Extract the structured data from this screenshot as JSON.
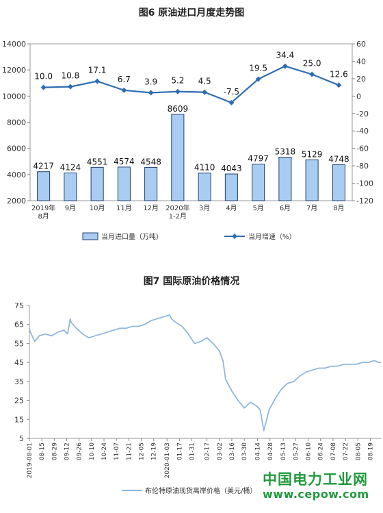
{
  "chart_data": [
    {
      "type": "bar",
      "title": "图6  原油进口月度走势图",
      "categories": [
        [
          "2019年",
          "8月"
        ],
        [
          "9月"
        ],
        [
          "10月"
        ],
        [
          "11月"
        ],
        [
          "12月"
        ],
        [
          "2020年",
          "1-2月"
        ],
        [
          "3月"
        ],
        [
          "4月"
        ],
        [
          "5月"
        ],
        [
          "6月"
        ],
        [
          "7月"
        ],
        [
          "8月"
        ]
      ],
      "series": [
        {
          "name": "当月进口量（万吨）",
          "type": "bar",
          "axis": "left",
          "values": [
            4217,
            4124,
            4551,
            4574,
            4548,
            8609,
            4110,
            4043,
            4797,
            5318,
            5129,
            4748
          ],
          "labels": [
            "4217",
            "4124",
            "4551",
            "4574",
            "4548",
            "8609",
            "4110",
            "4043",
            "4797",
            "5318",
            "5129",
            "4748"
          ]
        },
        {
          "name": "当月增速（%）",
          "type": "line",
          "axis": "right",
          "values": [
            10.0,
            10.8,
            17.1,
            6.7,
            3.9,
            5.2,
            4.5,
            -7.5,
            19.5,
            34.4,
            25.0,
            12.6
          ],
          "labels": [
            "10.0",
            "10.8",
            "17.1",
            "6.7",
            "3.9",
            "5.2",
            "4.5",
            "-7.5",
            "19.5",
            "34.4",
            "25.0",
            "12.6"
          ]
        }
      ],
      "ylim_left": [
        2000,
        14000
      ],
      "yticks_left": [
        "2000",
        "4000",
        "6000",
        "8000",
        "10000",
        "12000",
        "14000"
      ],
      "ylim_right": [
        -120,
        60
      ],
      "yticks_right": [
        "-120",
        "-100",
        "-80",
        "-60",
        "-40",
        "-20",
        "0",
        "20",
        "40",
        "60"
      ],
      "legend_position": "bottom",
      "grid": false,
      "colors": {
        "bar_fill": "#a9cdf2",
        "bar_stroke": "#1f3f6e",
        "line": "#2e6db4"
      }
    },
    {
      "type": "line",
      "title": "图7  国际原油价格情况",
      "ylim": [
        5,
        75
      ],
      "yticks": [
        "5",
        "15",
        "25",
        "35",
        "45",
        "55",
        "65",
        "75"
      ],
      "x_start": "2019-08-01",
      "x_end": "2020-08-31",
      "xticks": [
        "2019-08-01",
        "08-15",
        "08-29",
        "09-12",
        "09-26",
        "10-10",
        "10-24",
        "11-07",
        "11-21",
        "12-05",
        "12-19",
        "2020-01-03",
        "01-17",
        "01-31",
        "02-17",
        "03-02",
        "03-16",
        "03-30",
        "04-14",
        "04-28",
        "05-13",
        "05-27",
        "06-10",
        "06-24",
        "07-08",
        "07-22",
        "08-05",
        "08-19"
      ],
      "series": [
        {
          "name": "布伦特原油现货离岸价格（美元/桶）",
          "x": [
            "2019-08-01",
            "2019-08-02",
            "2019-08-07",
            "2019-08-12",
            "2019-08-19",
            "2019-08-26",
            "2019-09-02",
            "2019-09-09",
            "2019-09-13",
            "2019-09-16",
            "2019-09-17",
            "2019-09-23",
            "2019-09-30",
            "2019-10-07",
            "2019-10-14",
            "2019-10-21",
            "2019-10-28",
            "2019-11-04",
            "2019-11-11",
            "2019-11-18",
            "2019-11-25",
            "2019-12-02",
            "2019-12-09",
            "2019-12-16",
            "2019-12-23",
            "2019-12-30",
            "2020-01-06",
            "2020-01-08",
            "2020-01-13",
            "2020-01-20",
            "2020-01-27",
            "2020-02-03",
            "2020-02-10",
            "2020-02-17",
            "2020-02-24",
            "2020-03-02",
            "2020-03-06",
            "2020-03-09",
            "2020-03-16",
            "2020-03-23",
            "2020-03-30",
            "2020-04-06",
            "2020-04-13",
            "2020-04-17",
            "2020-04-21",
            "2020-04-27",
            "2020-05-04",
            "2020-05-11",
            "2020-05-18",
            "2020-05-25",
            "2020-06-01",
            "2020-06-08",
            "2020-06-15",
            "2020-06-22",
            "2020-06-29",
            "2020-07-06",
            "2020-07-13",
            "2020-07-20",
            "2020-07-27",
            "2020-08-03",
            "2020-08-10",
            "2020-08-17",
            "2020-08-24",
            "2020-08-28",
            "2020-08-31"
          ],
          "values": [
            63,
            61,
            56,
            59,
            60,
            59,
            61,
            62,
            60,
            68,
            66,
            63,
            60,
            58,
            59,
            60,
            61,
            62,
            63,
            63,
            64,
            64,
            65,
            67,
            68,
            69,
            70,
            68,
            66,
            64,
            60,
            55,
            56,
            58,
            55,
            51,
            46,
            36,
            30,
            25,
            21,
            24,
            22,
            20,
            9,
            20,
            26,
            31,
            34,
            35,
            38,
            40,
            41,
            42,
            42,
            43,
            43,
            44,
            44,
            44,
            45,
            45,
            46,
            45,
            45
          ]
        }
      ],
      "legend_position": "bottom",
      "grid": false,
      "colors": {
        "line": "#8fb7de"
      }
    }
  ],
  "watermark": {
    "line1": "中国电力工业网",
    "line2": "www.cepow.com"
  }
}
